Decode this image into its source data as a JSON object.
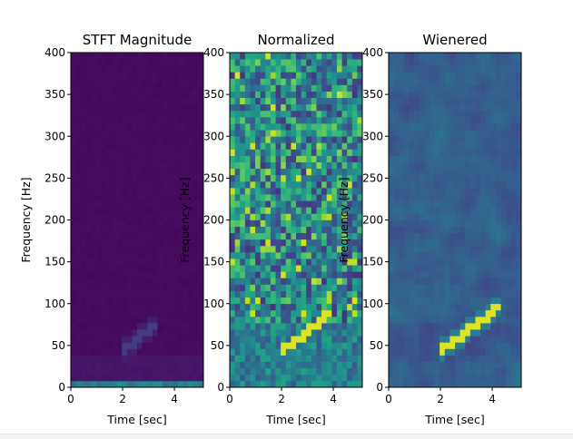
{
  "chart_data": [
    {
      "type": "heatmap",
      "title": "STFT Magnitude",
      "xlabel": "Time [sec]",
      "ylabel": "Frequency [Hz]",
      "xlim": [
        0,
        5.12
      ],
      "ylim": [
        0,
        400
      ],
      "xticks": [
        0,
        2,
        4
      ],
      "yticks": [
        0,
        50,
        100,
        150,
        200,
        250,
        300,
        350,
        400
      ],
      "colormap": "viridis",
      "features": {
        "background_level": 0.02,
        "chirp": {
          "start_time": 2.0,
          "start_freq": 45,
          "end_time": 3.4,
          "end_freq": 78,
          "level": 0.18
        },
        "dc_band": {
          "max_freq": 6,
          "level": 0.35
        }
      }
    },
    {
      "type": "heatmap",
      "title": "Normalized",
      "xlabel": "Time [sec]",
      "ylabel": "Frequency [Hz]",
      "xlim": [
        0,
        5.12
      ],
      "ylim": [
        0,
        400
      ],
      "xticks": [
        0,
        2,
        4
      ],
      "yticks": [
        0,
        50,
        100,
        150,
        200,
        250,
        300,
        350,
        400
      ],
      "colormap": "viridis",
      "features": {
        "background_level": "noise",
        "chirp": {
          "start_time": 1.9,
          "start_freq": 40,
          "end_time": 4.0,
          "end_freq": 92,
          "level": 0.95
        }
      }
    },
    {
      "type": "heatmap",
      "title": "Wienered",
      "xlabel": "Time [sec]",
      "ylabel": "Frequency [Hz]",
      "xlim": [
        0,
        5.12
      ],
      "ylim": [
        0,
        400
      ],
      "xticks": [
        0,
        2,
        4
      ],
      "yticks": [
        0,
        50,
        100,
        150,
        200,
        250,
        300,
        350,
        400
      ],
      "colormap": "viridis",
      "features": {
        "background_level": "smoothed-noise",
        "chirp": {
          "start_time": 1.9,
          "start_freq": 40,
          "end_time": 4.4,
          "end_freq": 100,
          "level": 0.95
        }
      }
    }
  ]
}
